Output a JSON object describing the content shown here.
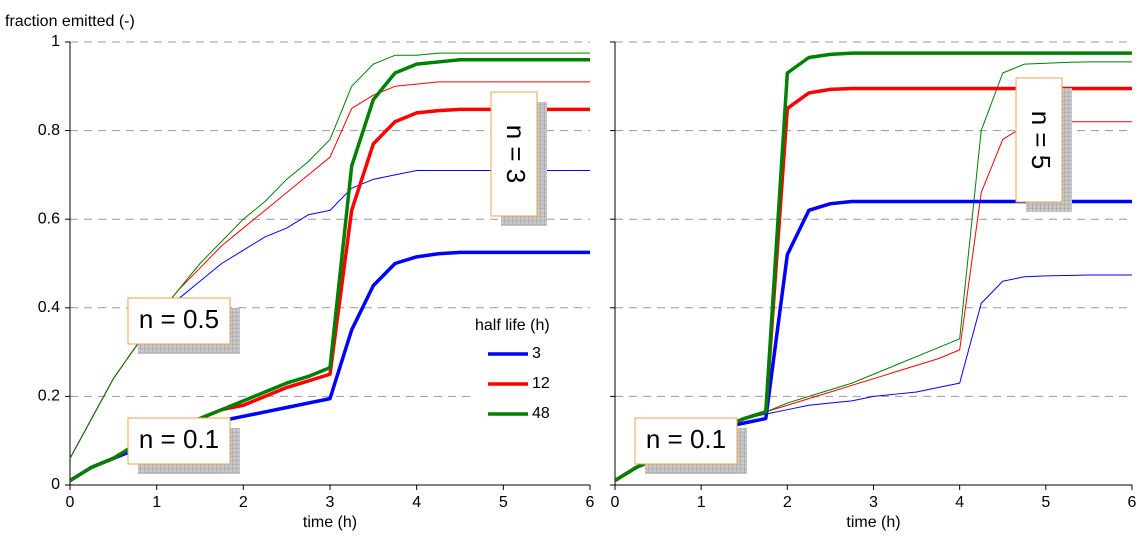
{
  "chart_data": [
    {
      "type": "line",
      "ylabel": "fraction emitted (-)",
      "xlabel": "time (h)",
      "x": [
        0,
        0.25,
        0.5,
        0.75,
        1,
        1.25,
        1.5,
        1.75,
        2,
        2.25,
        2.5,
        2.75,
        3,
        3.25,
        3.5,
        3.75,
        4,
        4.25,
        4.5,
        4.75,
        5,
        5.25,
        5.5,
        5.75,
        6
      ],
      "xlim": [
        0,
        6
      ],
      "xticks": [
        0,
        1,
        2,
        3,
        4,
        5,
        6
      ],
      "ylim": [
        0,
        1
      ],
      "yticks": [
        0,
        0.2,
        0.4,
        0.6,
        0.8,
        1
      ],
      "grid": true,
      "legend_title": "half life (h)",
      "annotations": [
        "n = 0.5",
        "n = 0.1",
        "n = 3"
      ],
      "series": [
        {
          "color": "#0000ff",
          "line_width": 1,
          "values": [
            0.06,
            0.15,
            0.24,
            0.31,
            0.37,
            0.42,
            0.46,
            0.5,
            0.53,
            0.56,
            0.58,
            0.61,
            0.62,
            0.67,
            0.69,
            0.7,
            0.71,
            0.71,
            0.71,
            0.71,
            0.71,
            0.71,
            0.71,
            0.71,
            0.71
          ]
        },
        {
          "color": "#ff0000",
          "line_width": 1,
          "values": [
            0.06,
            0.15,
            0.24,
            0.31,
            0.38,
            0.44,
            0.49,
            0.54,
            0.58,
            0.62,
            0.66,
            0.7,
            0.74,
            0.85,
            0.88,
            0.9,
            0.905,
            0.91,
            0.91,
            0.91,
            0.91,
            0.91,
            0.91,
            0.91,
            0.91
          ]
        },
        {
          "color": "#008000",
          "line_width": 1,
          "values": [
            0.06,
            0.15,
            0.24,
            0.31,
            0.38,
            0.44,
            0.5,
            0.55,
            0.6,
            0.64,
            0.69,
            0.73,
            0.78,
            0.9,
            0.95,
            0.97,
            0.97,
            0.975,
            0.975,
            0.975,
            0.975,
            0.975,
            0.975,
            0.975,
            0.975
          ]
        },
        {
          "name": "3",
          "color": "#0000ff",
          "line_width": 3.5,
          "values": [
            0.01,
            0.04,
            0.06,
            0.08,
            0.1,
            0.12,
            0.135,
            0.145,
            0.155,
            0.165,
            0.175,
            0.185,
            0.195,
            0.35,
            0.45,
            0.5,
            0.515,
            0.522,
            0.525,
            0.525,
            0.525,
            0.525,
            0.525,
            0.525,
            0.525
          ]
        },
        {
          "name": "12",
          "color": "#ff0000",
          "line_width": 3.5,
          "values": [
            0.01,
            0.04,
            0.06,
            0.09,
            0.11,
            0.13,
            0.15,
            0.17,
            0.18,
            0.2,
            0.22,
            0.235,
            0.25,
            0.62,
            0.77,
            0.82,
            0.84,
            0.845,
            0.848,
            0.848,
            0.848,
            0.848,
            0.848,
            0.848,
            0.848
          ]
        },
        {
          "name": "48",
          "color": "#008000",
          "line_width": 3.5,
          "values": [
            0.01,
            0.04,
            0.06,
            0.09,
            0.11,
            0.13,
            0.15,
            0.17,
            0.19,
            0.21,
            0.23,
            0.245,
            0.265,
            0.72,
            0.87,
            0.93,
            0.95,
            0.955,
            0.96,
            0.96,
            0.96,
            0.96,
            0.96,
            0.96,
            0.96
          ]
        }
      ]
    },
    {
      "type": "line",
      "xlabel": "time (h)",
      "x": [
        0,
        0.25,
        0.5,
        0.75,
        1,
        1.25,
        1.5,
        1.75,
        2,
        2.25,
        2.5,
        2.75,
        3,
        3.25,
        3.5,
        3.75,
        4,
        4.25,
        4.5,
        4.75,
        5,
        5.25,
        5.5,
        5.75,
        6
      ],
      "xlim": [
        0,
        6
      ],
      "xticks": [
        0,
        1,
        2,
        3,
        4,
        5,
        6
      ],
      "ylim": [
        0,
        1
      ],
      "yticks": [
        0,
        0.2,
        0.4,
        0.6,
        0.8,
        1
      ],
      "grid": true,
      "ytick_labels": false,
      "annotations": [
        "n = 0.1",
        "n = 5"
      ],
      "series": [
        {
          "color": "#0000ff",
          "line_width": 1,
          "values": [
            0.01,
            0.04,
            0.06,
            0.09,
            0.11,
            0.13,
            0.15,
            0.16,
            0.17,
            0.18,
            0.185,
            0.19,
            0.2,
            0.205,
            0.21,
            0.22,
            0.23,
            0.41,
            0.46,
            0.47,
            0.472,
            0.473,
            0.474,
            0.474,
            0.474
          ]
        },
        {
          "color": "#ff0000",
          "line_width": 1,
          "values": [
            0.01,
            0.04,
            0.06,
            0.09,
            0.11,
            0.13,
            0.15,
            0.165,
            0.18,
            0.195,
            0.21,
            0.225,
            0.24,
            0.255,
            0.27,
            0.285,
            0.305,
            0.66,
            0.78,
            0.81,
            0.818,
            0.82,
            0.82,
            0.82,
            0.82
          ]
        },
        {
          "color": "#008000",
          "line_width": 1,
          "values": [
            0.01,
            0.04,
            0.06,
            0.09,
            0.11,
            0.13,
            0.15,
            0.165,
            0.185,
            0.2,
            0.215,
            0.23,
            0.25,
            0.27,
            0.29,
            0.31,
            0.33,
            0.8,
            0.93,
            0.95,
            0.952,
            0.954,
            0.955,
            0.955,
            0.955
          ]
        },
        {
          "color": "#0000ff",
          "line_width": 3.5,
          "values": [
            0.01,
            0.04,
            0.06,
            0.09,
            0.11,
            0.13,
            0.14,
            0.15,
            0.52,
            0.62,
            0.635,
            0.64,
            0.64,
            0.64,
            0.64,
            0.64,
            0.64,
            0.64,
            0.64,
            0.64,
            0.64,
            0.64,
            0.64,
            0.64,
            0.64
          ]
        },
        {
          "color": "#ff0000",
          "line_width": 3.5,
          "values": [
            0.01,
            0.04,
            0.06,
            0.09,
            0.11,
            0.13,
            0.15,
            0.165,
            0.85,
            0.885,
            0.893,
            0.895,
            0.895,
            0.895,
            0.895,
            0.895,
            0.895,
            0.895,
            0.895,
            0.895,
            0.895,
            0.895,
            0.895,
            0.895,
            0.895
          ]
        },
        {
          "color": "#008000",
          "line_width": 3.5,
          "values": [
            0.01,
            0.04,
            0.06,
            0.09,
            0.11,
            0.13,
            0.15,
            0.165,
            0.93,
            0.965,
            0.972,
            0.975,
            0.975,
            0.975,
            0.975,
            0.975,
            0.975,
            0.975,
            0.975,
            0.975,
            0.975,
            0.975,
            0.975,
            0.975,
            0.975
          ]
        }
      ]
    }
  ]
}
